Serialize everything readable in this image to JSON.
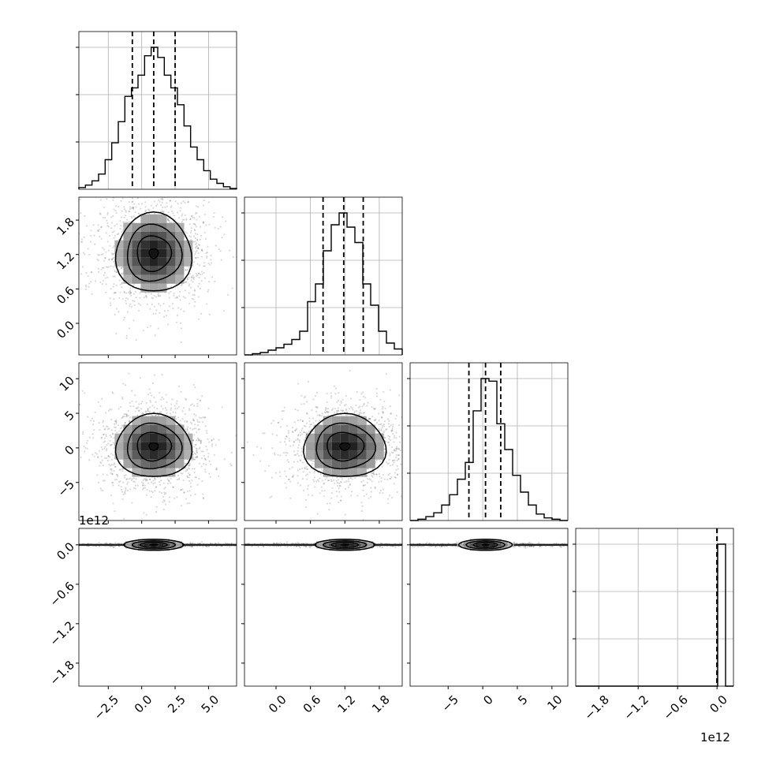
{
  "chart_data": {
    "type": "corner",
    "title": "",
    "parameters": [
      "",
      "",
      "",
      ""
    ],
    "offset_labels": {
      "row4_y": "1e12",
      "col4_x": "1e12"
    },
    "x_ticks": [
      {
        "values": [
          -2.5,
          0.0,
          2.5,
          5.0
        ],
        "labels": [
          "−2.5",
          "0.0",
          "2.5",
          "5.0"
        ]
      },
      {
        "values": [
          0.0,
          0.6,
          1.2,
          1.8
        ],
        "labels": [
          "0.0",
          "0.6",
          "1.2",
          "1.8"
        ]
      },
      {
        "values": [
          -5,
          0,
          5,
          10
        ],
        "labels": [
          "−5",
          "0",
          "5",
          "10"
        ]
      },
      {
        "values": [
          -1.8,
          -1.2,
          -0.6,
          0.0
        ],
        "labels": [
          "−1.8",
          "−1.2",
          "−0.6",
          "0.0"
        ]
      }
    ],
    "y_ticks": [
      null,
      {
        "values": [
          0.0,
          0.6,
          1.2,
          1.8
        ],
        "labels": [
          "0.0",
          "0.6",
          "1.2",
          "1.8"
        ]
      },
      {
        "values": [
          -5,
          0,
          5,
          10
        ],
        "labels": [
          "−5",
          "0",
          "5",
          "10"
        ]
      },
      {
        "values": [
          -1.8,
          -1.2,
          -0.6,
          0.0
        ],
        "labels": [
          "−1.8",
          "−1.2",
          "−0.6",
          "0.0"
        ]
      }
    ],
    "ranges": [
      [
        -4.7,
        7.1
      ],
      [
        -0.55,
        2.2
      ],
      [
        -10.5,
        12.3
      ],
      [
        -2.15,
        0.25
      ]
    ],
    "marginals": [
      {
        "bin_edges_range": [
          -4.7,
          7.1
        ],
        "counts": [
          2,
          5,
          10,
          18,
          35,
          55,
          80,
          110,
          120,
          135,
          158,
          168,
          156,
          135,
          120,
          100,
          75,
          50,
          35,
          22,
          12,
          7,
          3,
          1
        ],
        "quantiles": [
          -0.7,
          0.9,
          2.5
        ]
      },
      {
        "bin_edges_range": [
          -0.55,
          2.2
        ],
        "counts": [
          0,
          1,
          2,
          4,
          6,
          9,
          13,
          20,
          45,
          60,
          88,
          110,
          120,
          108,
          95,
          60,
          42,
          20,
          10,
          5
        ],
        "quantiles": [
          0.82,
          1.18,
          1.52
        ]
      },
      {
        "bin_edges_range": [
          -10.5,
          12.3
        ],
        "counts": [
          0,
          1,
          3,
          6,
          12,
          20,
          32,
          45,
          85,
          110,
          108,
          75,
          55,
          35,
          22,
          12,
          5,
          2,
          1,
          0
        ],
        "quantiles": [
          -2.0,
          0.4,
          2.6
        ]
      },
      {
        "bin_edges_range": [
          -2.15,
          0.25
        ],
        "counts": [
          0,
          0,
          0,
          0,
          0,
          0,
          0,
          0,
          0,
          0,
          0,
          0,
          0,
          0,
          0,
          0,
          0,
          0,
          1,
          0
        ],
        "quantiles": [
          0.0,
          0.0,
          0.0
        ]
      }
    ],
    "density_centers": {
      "1-0": [
        0.9,
        1.22
      ],
      "2-0": [
        0.9,
        0.2
      ],
      "2-1": [
        1.2,
        0.2
      ],
      "3-0": [
        0.9,
        0.0
      ],
      "3-1": [
        1.2,
        0.0
      ],
      "3-2": [
        0.4,
        0.0
      ]
    },
    "grid": true
  }
}
